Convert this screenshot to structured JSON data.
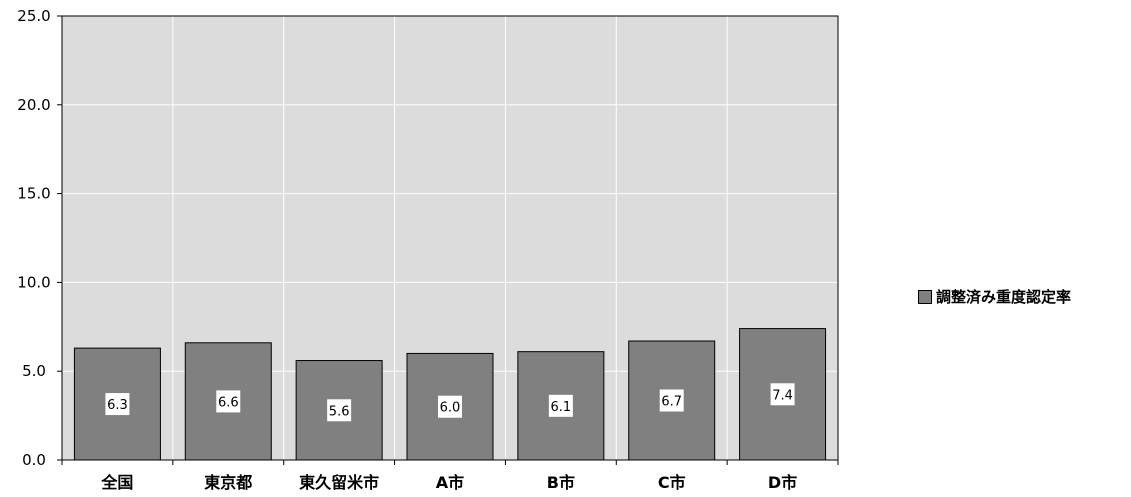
{
  "chart_data": {
    "type": "bar",
    "categories": [
      "全国",
      "東京都",
      "東久留米市",
      "A市",
      "B市",
      "C市",
      "D市"
    ],
    "series": [
      {
        "name": "調整済み重度認定率",
        "values": [
          6.3,
          6.6,
          5.6,
          6.0,
          6.1,
          6.7,
          7.4
        ],
        "color": "#808080"
      }
    ],
    "data_labels": [
      "6.3",
      "6.6",
      "5.6",
      "6.0",
      "6.1",
      "6.7",
      "7.4"
    ],
    "ylim": [
      0,
      25
    ],
    "y_ticks": [
      "0.0",
      "5.0",
      "10.0",
      "15.0",
      "20.0",
      "25.0"
    ],
    "grid": true,
    "legend_position": "right",
    "colors": {
      "plot_background": "#dcdcdc",
      "gridline": "#ffffff",
      "bar_fill": "#808080",
      "bar_stroke": "#000000",
      "label_box": "#ffffff"
    }
  }
}
